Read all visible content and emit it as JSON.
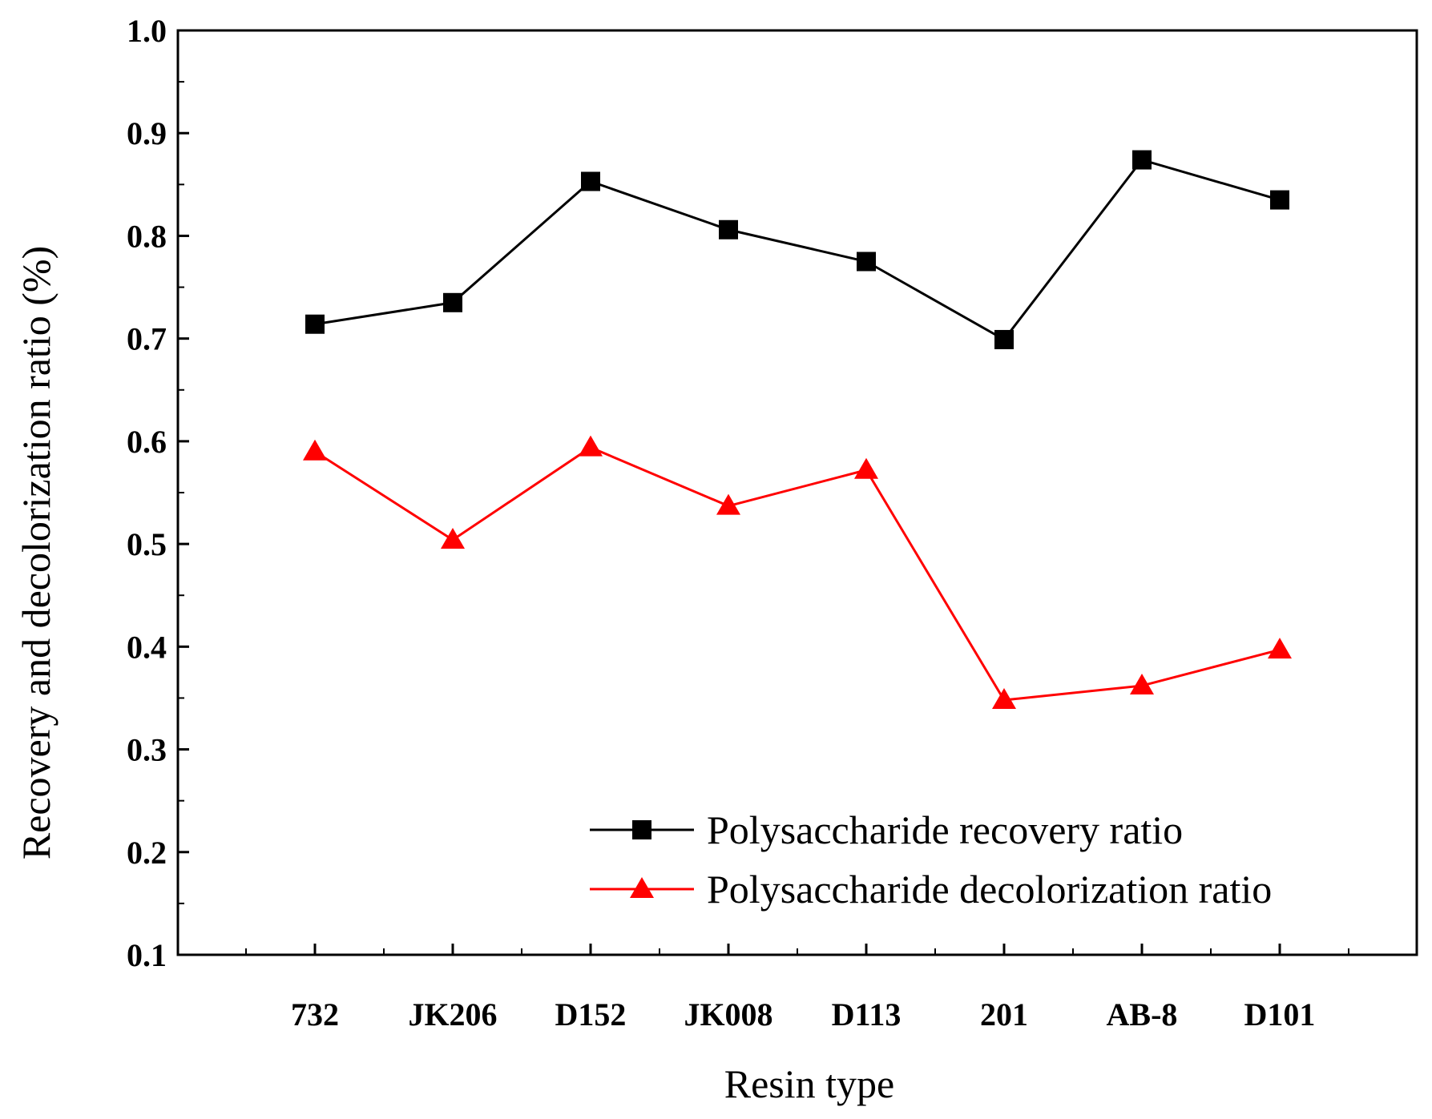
{
  "chart_data": {
    "type": "line",
    "title": "",
    "xlabel": "Resin type",
    "ylabel": "Recovery and decolorization ratio (%)",
    "ylim": [
      0.1,
      1.0
    ],
    "yticks": [
      "0.1",
      "0.2",
      "0.3",
      "0.4",
      "0.5",
      "0.6",
      "0.7",
      "0.8",
      "0.9",
      "1.0"
    ],
    "categories": [
      "732",
      "JK206",
      "D152",
      "JK008",
      "D113",
      "201",
      "AB-8",
      "D101"
    ],
    "grid": false,
    "legend_position": "bottom-right",
    "series": [
      {
        "name": "Polysaccharide recovery ratio",
        "marker": "square",
        "color": "#000000",
        "values": [
          0.714,
          0.735,
          0.853,
          0.806,
          0.775,
          0.699,
          0.874,
          0.835
        ]
      },
      {
        "name": "Polysaccharide decolorization ratio",
        "marker": "triangle",
        "color": "#ff0000",
        "values": [
          0.59,
          0.504,
          0.594,
          0.537,
          0.572,
          0.348,
          0.362,
          0.397
        ]
      }
    ]
  }
}
